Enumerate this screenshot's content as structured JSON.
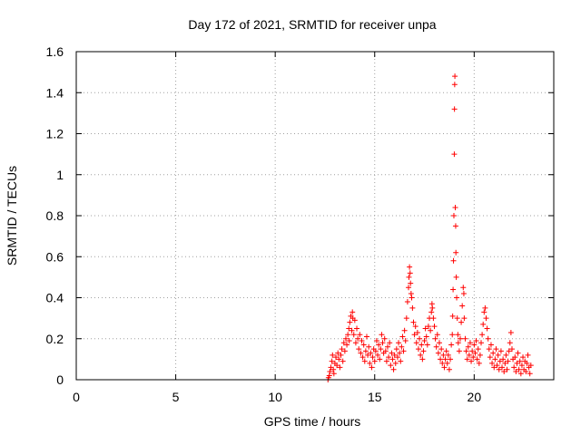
{
  "chart_data": {
    "type": "scatter",
    "title": "Day 172 of 2021, SRMTID for receiver unpa",
    "xlabel": "GPS time / hours",
    "ylabel": "SRMTID / TECUs",
    "xlim": [
      0,
      24
    ],
    "ylim": [
      0,
      1.6
    ],
    "x_ticks": [
      0,
      5,
      10,
      15,
      20
    ],
    "x_tick_labels": [
      "0",
      "5",
      "10",
      "15",
      "20"
    ],
    "y_ticks": [
      0,
      0.2,
      0.4,
      0.6,
      0.8,
      1.0,
      1.2,
      1.4,
      1.6
    ],
    "y_tick_labels": [
      "0",
      "0.2",
      "0.4",
      "0.6",
      "0.8",
      "1",
      "1.2",
      "1.4",
      "1.6"
    ],
    "grid": true,
    "marker": "+",
    "color": "#ff0000",
    "series": [
      {
        "name": "SRMTID",
        "points": [
          [
            12.65,
            0.0
          ],
          [
            12.68,
            0.01
          ],
          [
            12.72,
            0.02
          ],
          [
            12.75,
            0.04
          ],
          [
            12.8,
            0.06
          ],
          [
            12.85,
            0.09
          ],
          [
            12.88,
            0.12
          ],
          [
            12.92,
            0.05
          ],
          [
            12.95,
            0.03
          ],
          [
            13.0,
            0.08
          ],
          [
            13.05,
            0.11
          ],
          [
            13.1,
            0.07
          ],
          [
            13.15,
            0.13
          ],
          [
            13.2,
            0.1
          ],
          [
            13.25,
            0.06
          ],
          [
            13.3,
            0.12
          ],
          [
            13.35,
            0.15
          ],
          [
            13.4,
            0.09
          ],
          [
            13.45,
            0.18
          ],
          [
            13.5,
            0.14
          ],
          [
            13.55,
            0.2
          ],
          [
            13.6,
            0.17
          ],
          [
            13.65,
            0.22
          ],
          [
            13.7,
            0.25
          ],
          [
            13.72,
            0.19
          ],
          [
            13.75,
            0.28
          ],
          [
            13.8,
            0.31
          ],
          [
            13.85,
            0.24
          ],
          [
            13.88,
            0.33
          ],
          [
            13.9,
            0.3
          ],
          [
            13.95,
            0.22
          ],
          [
            14.0,
            0.29
          ],
          [
            14.05,
            0.18
          ],
          [
            14.1,
            0.25
          ],
          [
            14.15,
            0.2
          ],
          [
            14.2,
            0.15
          ],
          [
            14.25,
            0.22
          ],
          [
            14.3,
            0.13
          ],
          [
            14.35,
            0.19
          ],
          [
            14.4,
            0.11
          ],
          [
            14.45,
            0.17
          ],
          [
            14.5,
            0.09
          ],
          [
            14.55,
            0.14
          ],
          [
            14.6,
            0.21
          ],
          [
            14.65,
            0.12
          ],
          [
            14.7,
            0.16
          ],
          [
            14.75,
            0.08
          ],
          [
            14.8,
            0.13
          ],
          [
            14.85,
            0.06
          ],
          [
            14.9,
            0.11
          ],
          [
            14.95,
            0.15
          ],
          [
            15.0,
            0.09
          ],
          [
            15.05,
            0.14
          ],
          [
            15.1,
            0.19
          ],
          [
            15.15,
            0.12
          ],
          [
            15.2,
            0.17
          ],
          [
            15.25,
            0.1
          ],
          [
            15.3,
            0.15
          ],
          [
            15.35,
            0.22
          ],
          [
            15.4,
            0.18
          ],
          [
            15.45,
            0.13
          ],
          [
            15.5,
            0.2
          ],
          [
            15.55,
            0.14
          ],
          [
            15.6,
            0.09
          ],
          [
            15.65,
            0.16
          ],
          [
            15.7,
            0.11
          ],
          [
            15.75,
            0.18
          ],
          [
            15.8,
            0.07
          ],
          [
            15.85,
            0.13
          ],
          [
            15.9,
            0.1
          ],
          [
            15.95,
            0.05
          ],
          [
            16.0,
            0.12
          ],
          [
            16.05,
            0.08
          ],
          [
            16.1,
            0.15
          ],
          [
            16.15,
            0.11
          ],
          [
            16.2,
            0.18
          ],
          [
            16.25,
            0.13
          ],
          [
            16.3,
            0.09
          ],
          [
            16.35,
            0.16
          ],
          [
            16.4,
            0.21
          ],
          [
            16.45,
            0.14
          ],
          [
            16.5,
            0.24
          ],
          [
            16.55,
            0.19
          ],
          [
            16.6,
            0.3
          ],
          [
            16.65,
            0.38
          ],
          [
            16.7,
            0.45
          ],
          [
            16.72,
            0.5
          ],
          [
            16.75,
            0.55
          ],
          [
            16.78,
            0.52
          ],
          [
            16.8,
            0.47
          ],
          [
            16.83,
            0.42
          ],
          [
            16.86,
            0.4
          ],
          [
            16.9,
            0.35
          ],
          [
            16.95,
            0.28
          ],
          [
            17.0,
            0.22
          ],
          [
            17.05,
            0.26
          ],
          [
            17.1,
            0.18
          ],
          [
            17.15,
            0.23
          ],
          [
            17.2,
            0.15
          ],
          [
            17.25,
            0.2
          ],
          [
            17.3,
            0.12
          ],
          [
            17.35,
            0.17
          ],
          [
            17.4,
            0.1
          ],
          [
            17.45,
            0.14
          ],
          [
            17.5,
            0.19
          ],
          [
            17.55,
            0.25
          ],
          [
            17.6,
            0.21
          ],
          [
            17.65,
            0.17
          ],
          [
            17.7,
            0.26
          ],
          [
            17.75,
            0.3
          ],
          [
            17.8,
            0.24
          ],
          [
            17.85,
            0.33
          ],
          [
            17.88,
            0.37
          ],
          [
            17.9,
            0.35
          ],
          [
            17.95,
            0.3
          ],
          [
            18.0,
            0.26
          ],
          [
            18.05,
            0.2
          ],
          [
            18.1,
            0.16
          ],
          [
            18.15,
            0.22
          ],
          [
            18.2,
            0.13
          ],
          [
            18.25,
            0.18
          ],
          [
            18.3,
            0.1
          ],
          [
            18.35,
            0.15
          ],
          [
            18.4,
            0.08
          ],
          [
            18.45,
            0.12
          ],
          [
            18.5,
            0.06
          ],
          [
            18.55,
            0.1
          ],
          [
            18.6,
            0.14
          ],
          [
            18.65,
            0.08
          ],
          [
            18.7,
            0.12
          ],
          [
            18.75,
            0.05
          ],
          [
            18.8,
            0.1
          ],
          [
            18.85,
            0.17
          ],
          [
            18.9,
            0.22
          ],
          [
            18.92,
            0.31
          ],
          [
            18.94,
            0.44
          ],
          [
            18.96,
            0.58
          ],
          [
            18.98,
            0.8
          ],
          [
            19.0,
            1.1
          ],
          [
            19.01,
            1.32
          ],
          [
            19.02,
            1.44
          ],
          [
            19.03,
            1.48
          ],
          [
            19.05,
            0.84
          ],
          [
            19.07,
            0.75
          ],
          [
            19.08,
            0.62
          ],
          [
            19.1,
            0.5
          ],
          [
            19.12,
            0.4
          ],
          [
            19.15,
            0.3
          ],
          [
            19.18,
            0.22
          ],
          [
            19.2,
            0.18
          ],
          [
            19.25,
            0.14
          ],
          [
            19.3,
            0.2
          ],
          [
            19.35,
            0.28
          ],
          [
            19.4,
            0.36
          ],
          [
            19.45,
            0.45
          ],
          [
            19.48,
            0.42
          ],
          [
            19.5,
            0.3
          ],
          [
            19.55,
            0.2
          ],
          [
            19.6,
            0.14
          ],
          [
            19.65,
            0.1
          ],
          [
            19.7,
            0.16
          ],
          [
            19.75,
            0.12
          ],
          [
            19.8,
            0.18
          ],
          [
            19.85,
            0.09
          ],
          [
            19.9,
            0.14
          ],
          [
            19.95,
            0.11
          ],
          [
            20.0,
            0.17
          ],
          [
            20.05,
            0.13
          ],
          [
            20.1,
            0.19
          ],
          [
            20.15,
            0.1
          ],
          [
            20.2,
            0.15
          ],
          [
            20.25,
            0.08
          ],
          [
            20.3,
            0.12
          ],
          [
            20.35,
            0.18
          ],
          [
            20.4,
            0.22
          ],
          [
            20.45,
            0.27
          ],
          [
            20.5,
            0.33
          ],
          [
            20.55,
            0.35
          ],
          [
            20.6,
            0.3
          ],
          [
            20.65,
            0.25
          ],
          [
            20.7,
            0.2
          ],
          [
            20.75,
            0.15
          ],
          [
            20.8,
            0.11
          ],
          [
            20.85,
            0.17
          ],
          [
            20.9,
            0.08
          ],
          [
            20.95,
            0.13
          ],
          [
            21.0,
            0.06
          ],
          [
            21.05,
            0.1
          ],
          [
            21.1,
            0.15
          ],
          [
            21.15,
            0.07
          ],
          [
            21.2,
            0.12
          ],
          [
            21.25,
            0.05
          ],
          [
            21.3,
            0.09
          ],
          [
            21.35,
            0.14
          ],
          [
            21.4,
            0.06
          ],
          [
            21.45,
            0.1
          ],
          [
            21.5,
            0.04
          ],
          [
            21.55,
            0.08
          ],
          [
            21.6,
            0.12
          ],
          [
            21.65,
            0.05
          ],
          [
            21.7,
            0.09
          ],
          [
            21.75,
            0.14
          ],
          [
            21.8,
            0.18
          ],
          [
            21.85,
            0.23
          ],
          [
            21.9,
            0.15
          ],
          [
            21.95,
            0.1
          ],
          [
            22.0,
            0.06
          ],
          [
            22.05,
            0.11
          ],
          [
            22.1,
            0.04
          ],
          [
            22.15,
            0.08
          ],
          [
            22.2,
            0.13
          ],
          [
            22.25,
            0.05
          ],
          [
            22.3,
            0.09
          ],
          [
            22.35,
            0.03
          ],
          [
            22.4,
            0.07
          ],
          [
            22.45,
            0.11
          ],
          [
            22.5,
            0.05
          ],
          [
            22.55,
            0.09
          ],
          [
            22.6,
            0.04
          ],
          [
            22.65,
            0.08
          ],
          [
            22.7,
            0.12
          ],
          [
            22.75,
            0.06
          ],
          [
            22.8,
            0.03
          ],
          [
            22.85,
            0.07
          ]
        ]
      }
    ]
  }
}
